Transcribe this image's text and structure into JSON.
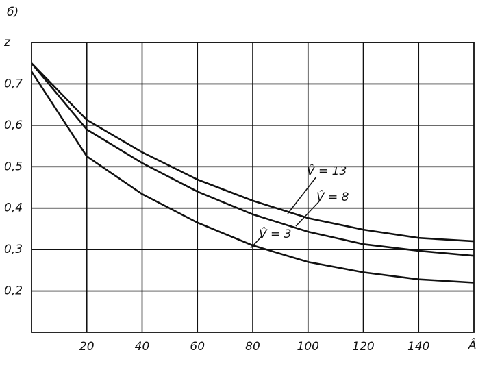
{
  "chart_data": {
    "type": "line",
    "panel_label": "б)",
    "x_label": "Â",
    "x": [
      0,
      20,
      40,
      60,
      80,
      100,
      120,
      140,
      160
    ],
    "xlim": [
      0,
      160
    ],
    "xticks": [
      20,
      40,
      60,
      80,
      100,
      120,
      140
    ],
    "ylim": [
      0.1,
      0.8
    ],
    "yticks": [
      {
        "value": 0.2,
        "label": "0,2"
      },
      {
        "value": 0.3,
        "label": "0,3"
      },
      {
        "value": 0.4,
        "label": "0,4"
      },
      {
        "value": 0.5,
        "label": "0,5"
      },
      {
        "value": 0.6,
        "label": "0,6"
      },
      {
        "value": 0.7,
        "label": "0,7"
      },
      {
        "value": 0.8,
        "label": "z"
      }
    ],
    "grid": true,
    "series": [
      {
        "name": "V̂ = 13",
        "color": "#111111",
        "values": [
          0.75,
          0.613,
          0.535,
          0.469,
          0.418,
          0.376,
          0.348,
          0.328,
          0.32
        ]
      },
      {
        "name": "V̂ = 8",
        "color": "#111111",
        "values": [
          0.75,
          0.59,
          0.509,
          0.44,
          0.385,
          0.343,
          0.313,
          0.297,
          0.285
        ]
      },
      {
        "name": "V̂ = 3",
        "color": "#111111",
        "values": [
          0.73,
          0.525,
          0.434,
          0.365,
          0.31,
          0.27,
          0.245,
          0.228,
          0.22
        ]
      }
    ]
  }
}
